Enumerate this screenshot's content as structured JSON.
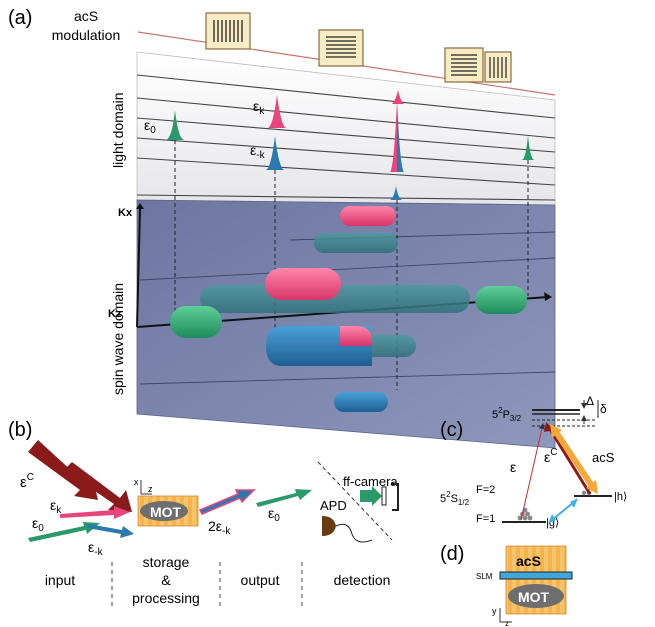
{
  "panels": {
    "a": "(a)",
    "b": "(b)",
    "c": "(c)",
    "d": "(d)"
  },
  "panel_a": {
    "acs_label_line1": "acS",
    "acs_label_line2": "modulation",
    "light_domain": "light domain",
    "spin_wave_domain": "spin wave domain",
    "axis_kx": "Kx",
    "axis_kz": "Kz",
    "pulse_e0": "ε",
    "pulse_e0_sub": "0",
    "pulse_ek": "ε",
    "pulse_ek_sub": "k",
    "pulse_emk": "ε",
    "pulse_emk_sub": "-k"
  },
  "panel_b": {
    "ec": "ε",
    "ec_sup": "C",
    "ek": "ε",
    "ek_sub": "k",
    "e0_in": "ε",
    "e0_in_sub": "0",
    "emk": "ε",
    "emk_sub": "-k",
    "mot": "MOT",
    "out_2emk": "2ε",
    "out_2emk_sub": "-k",
    "out_e0": "ε",
    "out_e0_sub": "0",
    "ff_camera": "ff-camera",
    "apd": "APD",
    "axis_x": "x",
    "axis_z": "z",
    "stage_input": "input",
    "stage_storage_1": "storage",
    "stage_storage_2": "&",
    "stage_storage_3": "processing",
    "stage_output": "output",
    "stage_detection": "detection"
  },
  "panel_c": {
    "level_p": "5",
    "level_p_sup": "2",
    "level_p_rest": "P",
    "level_p_sub": "3/2",
    "level_s": "5",
    "level_s_sup": "2",
    "level_s_rest": "S",
    "level_s_sub": "1/2",
    "f2": "F=2",
    "f1": "F=1",
    "ket_g": "|g⟩",
    "ket_h": "|h⟩",
    "delta_big": "Δ",
    "delta_small": "δ",
    "e": "ε",
    "ec": "ε",
    "ec_sup": "C",
    "acs": "acS"
  },
  "panel_d": {
    "acs": "acS",
    "slm": "SLM",
    "mot": "MOT",
    "axis_y": "y",
    "axis_z": "z"
  },
  "colors": {
    "green": "#2a9a6a",
    "pink": "#e8457a",
    "blue": "#2a7ab0",
    "darkred": "#8b1a1a",
    "orange": "#f4a838",
    "spin_bg": "#7c86ad",
    "light_bg": "#ececf0"
  }
}
